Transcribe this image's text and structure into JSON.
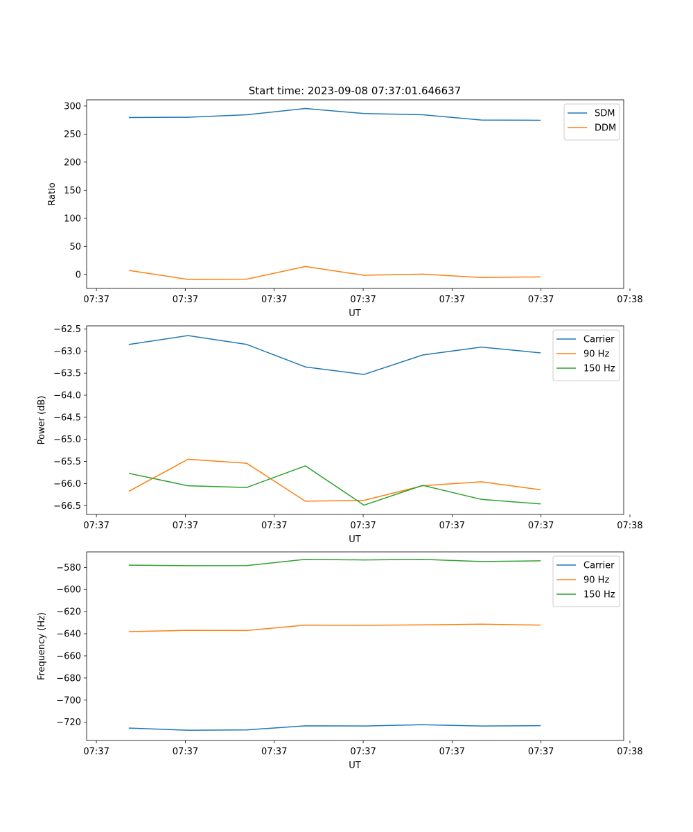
{
  "figure_title": "Start time: 2023-09-08 07:37:01.646637",
  "colors": {
    "blue": "#1f77b4",
    "orange": "#ff7f0e",
    "green": "#2ca02c"
  },
  "chart_data": [
    {
      "type": "line",
      "xlabel": "UT",
      "ylabel": "Ratio",
      "x_ticks": [
        "07:37",
        "07:37",
        "07:37",
        "07:37",
        "07:37",
        "07:37",
        "07:38"
      ],
      "xlim": [
        -0.48,
        5.56
      ],
      "x_tick_positions": [
        -0.37,
        0.63,
        1.63,
        2.63,
        3.63,
        4.63,
        5.63
      ],
      "x": [
        0,
        0.66,
        1.32,
        1.98,
        2.64,
        3.3,
        3.96,
        4.62
      ],
      "ylim": [
        -25,
        311
      ],
      "y_ticks": [
        0,
        50,
        100,
        150,
        200,
        250,
        300
      ],
      "y_tick_labels": [
        "0",
        "50",
        "100",
        "150",
        "200",
        "250",
        "300"
      ],
      "legend": "top-right",
      "series": [
        {
          "name": "SDM",
          "color": "#1f77b4",
          "values": [
            279.5,
            280,
            284.5,
            295.5,
            286.5,
            284.5,
            275,
            274.5
          ]
        },
        {
          "name": "DDM",
          "color": "#ff7f0e",
          "values": [
            7,
            -9,
            -8.5,
            14,
            -1.5,
            0.5,
            -5.5,
            -4.5
          ]
        }
      ]
    },
    {
      "type": "line",
      "xlabel": "UT",
      "ylabel": "Power (dB)",
      "x_ticks": [
        "07:37",
        "07:37",
        "07:37",
        "07:37",
        "07:37",
        "07:37",
        "07:38"
      ],
      "xlim": [
        -0.48,
        5.56
      ],
      "x_tick_positions": [
        -0.37,
        0.63,
        1.63,
        2.63,
        3.63,
        4.63,
        5.63
      ],
      "x": [
        0,
        0.66,
        1.32,
        1.98,
        2.64,
        3.3,
        3.96,
        4.62
      ],
      "ylim": [
        -66.7,
        -62.43
      ],
      "y_ticks": [
        -66.5,
        -66.0,
        -65.5,
        -65.0,
        -64.5,
        -64.0,
        -63.5,
        -63.0,
        -62.5
      ],
      "y_tick_labels": [
        "−66.5",
        "−66.0",
        "−65.5",
        "−65.0",
        "−64.5",
        "−64.0",
        "−63.5",
        "−63.0",
        "−62.5"
      ],
      "legend": "top-right",
      "series": [
        {
          "name": "Carrier",
          "color": "#1f77b4",
          "values": [
            -62.85,
            -62.65,
            -62.85,
            -63.36,
            -63.53,
            -63.09,
            -62.91,
            -63.04
          ]
        },
        {
          "name": "90 Hz",
          "color": "#ff7f0e",
          "values": [
            -66.17,
            -65.45,
            -65.54,
            -66.4,
            -66.38,
            -66.05,
            -65.96,
            -66.14
          ]
        },
        {
          "name": "150 Hz",
          "color": "#2ca02c",
          "values": [
            -65.77,
            -66.05,
            -66.09,
            -65.6,
            -66.49,
            -66.04,
            -66.36,
            -66.46
          ]
        }
      ]
    },
    {
      "type": "line",
      "xlabel": "UT",
      "ylabel": "Frequency (Hz)",
      "x_ticks": [
        "07:37",
        "07:37",
        "07:37",
        "07:37",
        "07:37",
        "07:37",
        "07:38"
      ],
      "xlim": [
        -0.48,
        5.56
      ],
      "x_tick_positions": [
        -0.37,
        0.63,
        1.63,
        2.63,
        3.63,
        4.63,
        5.63
      ],
      "x": [
        0,
        0.66,
        1.32,
        1.98,
        2.64,
        3.3,
        3.96,
        4.62
      ],
      "ylim": [
        -736.5,
        -566
      ],
      "y_ticks": [
        -720,
        -700,
        -680,
        -660,
        -640,
        -620,
        -600,
        -580
      ],
      "y_tick_labels": [
        "−720",
        "−700",
        "−680",
        "−660",
        "−640",
        "−620",
        "−600",
        "−580"
      ],
      "legend": "top-right",
      "series": [
        {
          "name": "Carrier",
          "color": "#1f77b4",
          "values": [
            -725.3,
            -727.3,
            -726.9,
            -723.3,
            -723.4,
            -722.3,
            -723.4,
            -723.1
          ]
        },
        {
          "name": "90 Hz",
          "color": "#ff7f0e",
          "values": [
            -638.1,
            -636.9,
            -637.1,
            -632.2,
            -632.4,
            -632.0,
            -631.3,
            -632.2
          ]
        },
        {
          "name": "150 Hz",
          "color": "#2ca02c",
          "values": [
            -578.0,
            -578.5,
            -578.4,
            -572.8,
            -573.3,
            -572.8,
            -574.7,
            -574.1
          ]
        }
      ]
    }
  ]
}
